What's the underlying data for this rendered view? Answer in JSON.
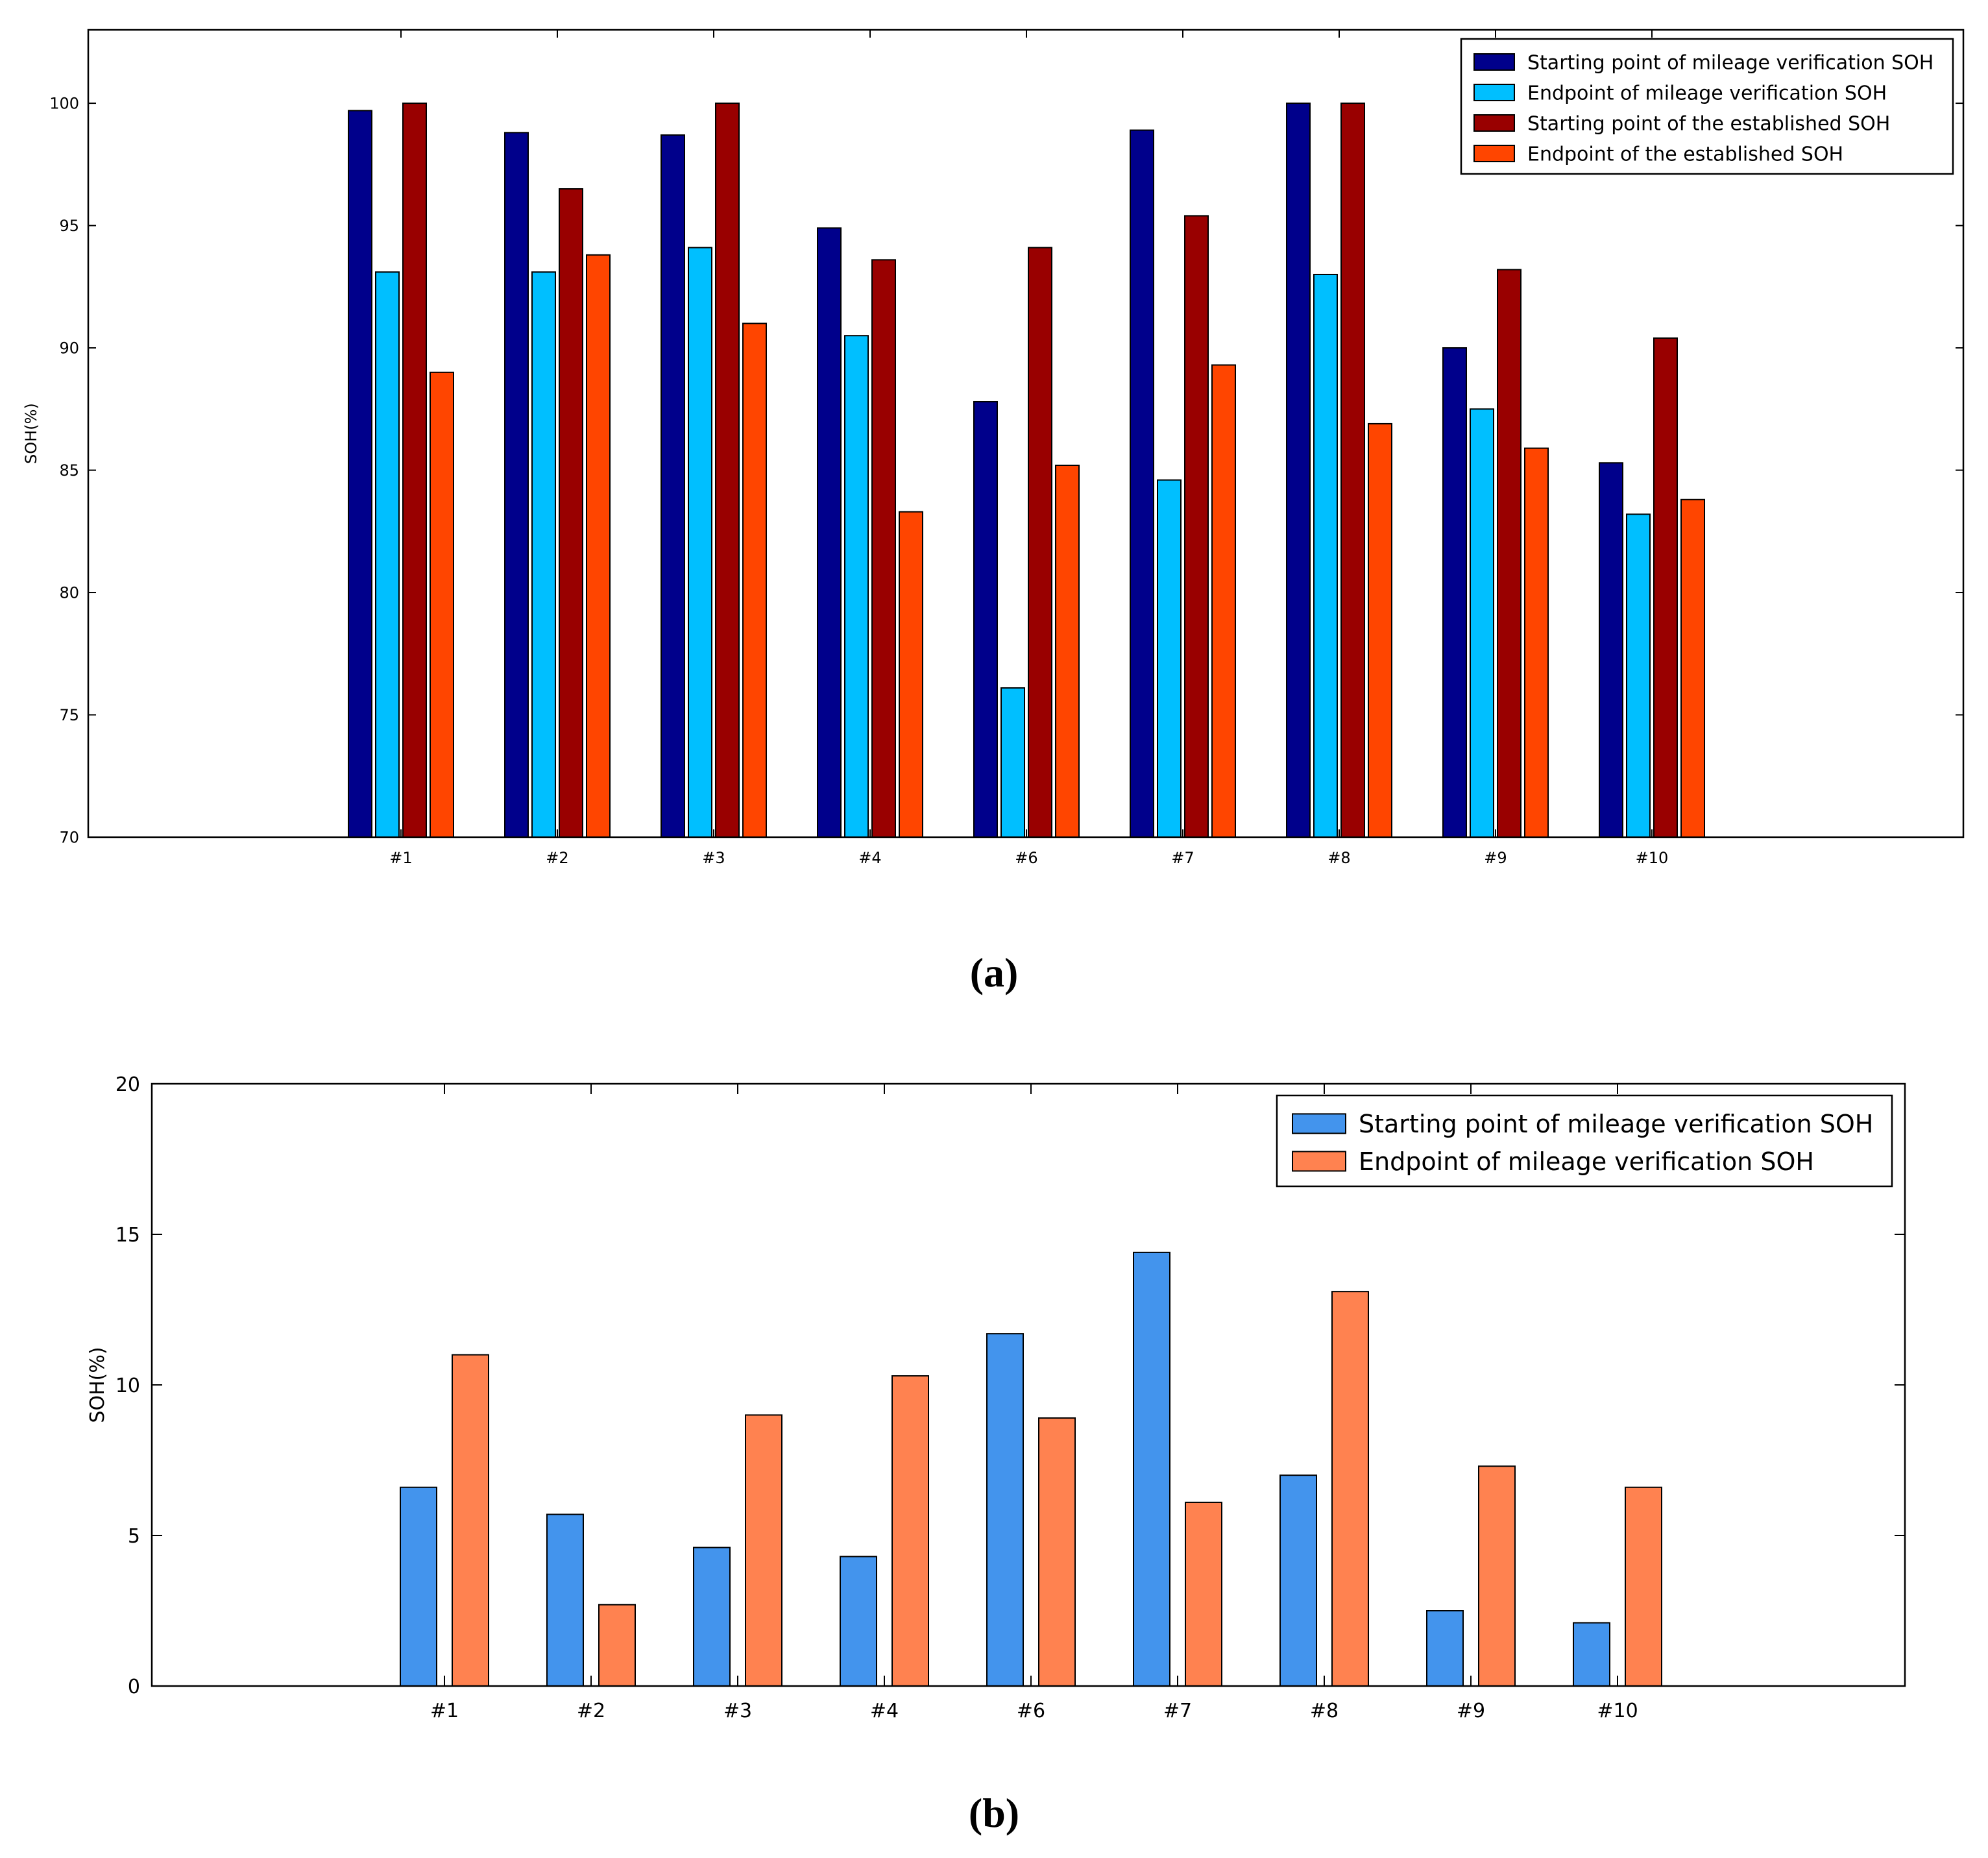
{
  "chart_data": [
    {
      "type": "bar",
      "title": "",
      "xlabel": "",
      "ylabel": "SOH(%)",
      "ylim": [
        70,
        103
      ],
      "yticks": [
        70,
        75,
        80,
        85,
        90,
        95,
        100
      ],
      "grid": false,
      "legend_position": "top-right",
      "caption": "(a)",
      "categories": [
        "#1",
        "#2",
        "#3",
        "#4",
        "#6",
        "#7",
        "#8",
        "#9",
        "#10"
      ],
      "series": [
        {
          "name": "Starting point of mileage verification SOH",
          "color": "#00008b",
          "values": [
            99.7,
            98.8,
            98.7,
            94.9,
            87.8,
            98.9,
            100.0,
            90.0,
            85.3
          ]
        },
        {
          "name": "Endpoint of mileage verification SOH",
          "color": "#00bfff",
          "values": [
            93.1,
            93.1,
            94.1,
            90.5,
            76.1,
            84.6,
            93.0,
            87.5,
            83.2
          ]
        },
        {
          "name": "Starting point of the established SOH",
          "color": "#990000",
          "values": [
            100.0,
            96.5,
            100.0,
            93.6,
            94.1,
            95.4,
            100.0,
            93.2,
            90.4
          ]
        },
        {
          "name": "Endpoint of the established SOH",
          "color": "#ff4500",
          "values": [
            89.0,
            93.8,
            91.0,
            83.3,
            85.2,
            89.3,
            86.9,
            85.9,
            83.8
          ]
        }
      ]
    },
    {
      "type": "bar",
      "title": "",
      "xlabel": "",
      "ylabel": "SOH(%)",
      "ylim": [
        0,
        20
      ],
      "yticks": [
        0,
        5,
        10,
        15,
        20
      ],
      "grid": false,
      "legend_position": "top-right",
      "caption": "(b)",
      "categories": [
        "#1",
        "#2",
        "#3",
        "#4",
        "#6",
        "#7",
        "#8",
        "#9",
        "#10"
      ],
      "series": [
        {
          "name": "Starting point of mileage verification SOH",
          "color": "#4394ed",
          "values": [
            6.6,
            5.7,
            4.6,
            4.3,
            11.7,
            14.4,
            7.0,
            2.5,
            2.1
          ]
        },
        {
          "name": "Endpoint of mileage verification SOH",
          "color": "#ff8250",
          "values": [
            11.0,
            2.7,
            9.0,
            10.3,
            8.9,
            6.1,
            13.1,
            7.3,
            6.6
          ]
        }
      ]
    }
  ]
}
